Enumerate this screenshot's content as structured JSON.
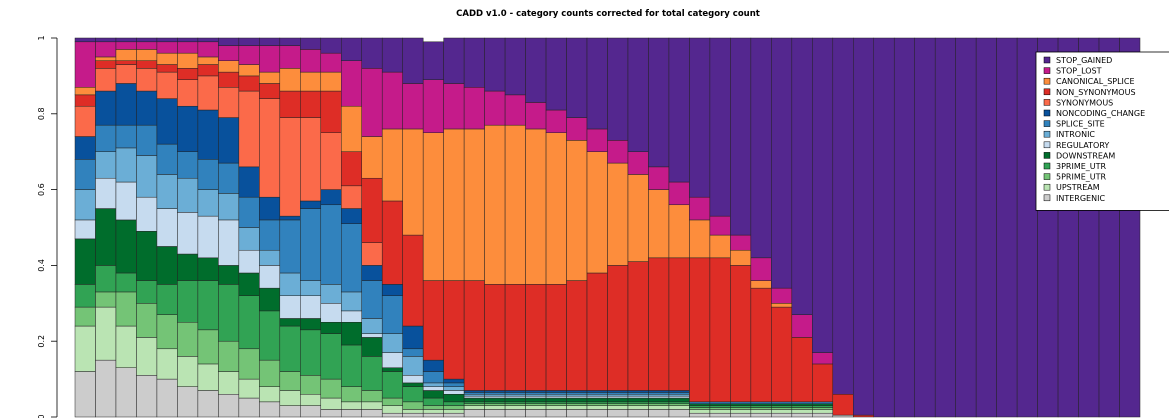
{
  "chart_data": {
    "type": "stacked_bar",
    "title": "CADD v1.0 - category counts corrected for total category count",
    "ylim": [
      0,
      1
    ],
    "yticks": [
      0,
      0.2,
      0.4,
      0.6,
      0.8,
      1
    ],
    "legend": "top-right",
    "series": [
      {
        "name": "STOP_GAINED",
        "color": "#54278f",
        "values": [
          0.01,
          0.01,
          0.01,
          0.01,
          0.01,
          0.01,
          0.01,
          0.02,
          0.02,
          0.02,
          0.02,
          0.03,
          0.04,
          0.06,
          0.08,
          0.09,
          0.12,
          0.1,
          0.12,
          0.13,
          0.14,
          0.15,
          0.17,
          0.19,
          0.21,
          0.24,
          0.27,
          0.3,
          0.34,
          0.38,
          0.42,
          0.47,
          0.52,
          0.58,
          0.66,
          0.73,
          0.83,
          0.94,
          0.995,
          1,
          1,
          1,
          1,
          1,
          1,
          1,
          1,
          1,
          1,
          1,
          1,
          1
        ]
      },
      {
        "name": "STOP_LOST",
        "color": "#c51b8a",
        "values": [
          0.12,
          0.04,
          0.02,
          0.02,
          0.03,
          0.03,
          0.04,
          0.04,
          0.05,
          0.07,
          0.06,
          0.06,
          0.05,
          0.12,
          0.18,
          0.15,
          0.12,
          0.14,
          0.12,
          0.11,
          0.09,
          0.08,
          0.07,
          0.06,
          0.06,
          0.06,
          0.06,
          0.06,
          0.06,
          0.06,
          0.06,
          0.05,
          0.04,
          0.06,
          0.04,
          0.06,
          0.03,
          0,
          0,
          0,
          0,
          0,
          0,
          0,
          0,
          0,
          0,
          0,
          0,
          0,
          0,
          0
        ]
      },
      {
        "name": "CANONICAL_SPLICE",
        "color": "#fd8d3c",
        "values": [
          0.02,
          0.01,
          0.03,
          0.03,
          0.03,
          0.04,
          0.02,
          0.03,
          0.03,
          0.03,
          0.06,
          0.05,
          0.05,
          0.12,
          0.11,
          0.19,
          0.28,
          0.39,
          0.4,
          0.4,
          0.42,
          0.42,
          0.41,
          0.4,
          0.37,
          0.32,
          0.27,
          0.23,
          0.18,
          0.14,
          0.1,
          0.06,
          0.04,
          0.02,
          0.01,
          0,
          0,
          0,
          0,
          0,
          0,
          0,
          0,
          0,
          0,
          0,
          0,
          0,
          0,
          0,
          0,
          0
        ]
      },
      {
        "name": "NON_SYNONYMOUS",
        "color": "#de2d26",
        "values": [
          0.03,
          0.02,
          0.01,
          0.02,
          0.02,
          0.03,
          0.03,
          0.04,
          0.04,
          0.04,
          0.07,
          0.07,
          0.11,
          0.09,
          0.17,
          0.22,
          0.24,
          0.21,
          0.26,
          0.29,
          0.28,
          0.28,
          0.28,
          0.28,
          0.29,
          0.31,
          0.33,
          0.34,
          0.35,
          0.35,
          0.38,
          0.38,
          0.36,
          0.3,
          0.25,
          0.17,
          0.1,
          0.055,
          0.005,
          0,
          0,
          0,
          0,
          0,
          0,
          0,
          0,
          0,
          0,
          0,
          0,
          0
        ]
      },
      {
        "name": "SYNONYMOUS",
        "color": "#fb6a4a",
        "values": [
          0.08,
          0.06,
          0.05,
          0.06,
          0.07,
          0.07,
          0.09,
          0.08,
          0.2,
          0.26,
          0.26,
          0.22,
          0.15,
          0.06,
          0.06,
          0,
          0,
          0,
          0,
          0,
          0,
          0,
          0,
          0,
          0,
          0,
          0,
          0,
          0,
          0,
          0,
          0,
          0,
          0,
          0,
          0,
          0,
          0,
          0,
          0,
          0,
          0,
          0,
          0,
          0,
          0,
          0,
          0,
          0,
          0,
          0,
          0
        ]
      },
      {
        "name": "NONCODING_CHANGE",
        "color": "#08519c",
        "values": [
          0.06,
          0.09,
          0.11,
          0.09,
          0.12,
          0.12,
          0.13,
          0.12,
          0.08,
          0.06,
          0.01,
          0.02,
          0.04,
          0.04,
          0.04,
          0.03,
          0.06,
          0.03,
          0.01,
          0.005,
          0.005,
          0.005,
          0.005,
          0.005,
          0.005,
          0.005,
          0.005,
          0.005,
          0.005,
          0.005,
          0,
          0,
          0,
          0,
          0,
          0,
          0,
          0,
          0,
          0,
          0,
          0,
          0,
          0,
          0,
          0,
          0,
          0,
          0,
          0,
          0,
          0
        ]
      },
      {
        "name": "SPLICE_SITE",
        "color": "#3182bd",
        "values": [
          0.08,
          0.07,
          0.06,
          0.08,
          0.08,
          0.07,
          0.08,
          0.08,
          0.08,
          0.08,
          0.14,
          0.19,
          0.21,
          0.18,
          0.1,
          0.1,
          0.02,
          0.03,
          0.01,
          0.005,
          0.005,
          0.005,
          0.005,
          0.005,
          0.005,
          0.005,
          0.005,
          0.005,
          0.005,
          0.005,
          0.005,
          0.005,
          0.005,
          0.005,
          0.005,
          0.005,
          0.005,
          0,
          0,
          0,
          0,
          0,
          0,
          0,
          0,
          0,
          0,
          0,
          0,
          0,
          0,
          0
        ]
      },
      {
        "name": "INTRONIC",
        "color": "#6baed6",
        "values": [
          0.08,
          0.07,
          0.09,
          0.11,
          0.09,
          0.09,
          0.07,
          0.07,
          0.06,
          0.04,
          0.06,
          0.04,
          0.05,
          0.05,
          0.04,
          0.05,
          0.05,
          0.01,
          0.01,
          0.005,
          0.005,
          0.005,
          0.005,
          0.005,
          0.005,
          0.005,
          0.005,
          0.005,
          0.005,
          0.005,
          0,
          0,
          0,
          0,
          0,
          0,
          0,
          0,
          0,
          0,
          0,
          0,
          0,
          0,
          0,
          0,
          0,
          0,
          0,
          0,
          0,
          0
        ]
      },
      {
        "name": "REGULATORY",
        "color": "#c6dbef",
        "values": [
          0.05,
          0.08,
          0.1,
          0.09,
          0.1,
          0.11,
          0.11,
          0.12,
          0.06,
          0.06,
          0.06,
          0.06,
          0.05,
          0.03,
          0.01,
          0.04,
          0.02,
          0.01,
          0.01,
          0.005,
          0.005,
          0.005,
          0.005,
          0.005,
          0.005,
          0.005,
          0.005,
          0.005,
          0.005,
          0.005,
          0,
          0,
          0,
          0,
          0,
          0,
          0,
          0,
          0,
          0,
          0,
          0,
          0,
          0,
          0,
          0,
          0,
          0,
          0,
          0,
          0,
          0
        ]
      },
      {
        "name": "DOWNSTREAM",
        "color": "#006d2c",
        "values": [
          0.12,
          0.15,
          0.14,
          0.13,
          0.1,
          0.07,
          0.06,
          0.05,
          0.06,
          0.06,
          0.02,
          0.03,
          0.03,
          0.06,
          0.05,
          0.01,
          0.01,
          0.02,
          0.02,
          0.01,
          0.01,
          0.01,
          0.01,
          0.01,
          0.01,
          0.01,
          0.01,
          0.01,
          0.01,
          0.01,
          0.005,
          0.005,
          0.005,
          0.005,
          0.005,
          0.005,
          0.005,
          0,
          0,
          0,
          0,
          0,
          0,
          0,
          0,
          0,
          0,
          0,
          0,
          0,
          0,
          0
        ]
      },
      {
        "name": "3PRIME_UTR",
        "color": "#31a354",
        "values": [
          0.06,
          0.07,
          0.05,
          0.06,
          0.08,
          0.11,
          0.13,
          0.15,
          0.14,
          0.13,
          0.12,
          0.12,
          0.12,
          0.11,
          0.09,
          0.07,
          0.04,
          0.02,
          0.01,
          0.005,
          0.005,
          0.005,
          0.005,
          0.005,
          0.005,
          0.005,
          0.005,
          0.005,
          0.005,
          0.005,
          0.005,
          0.005,
          0.005,
          0.005,
          0.005,
          0.005,
          0.005,
          0,
          0,
          0,
          0,
          0,
          0,
          0,
          0,
          0,
          0,
          0,
          0,
          0,
          0,
          0
        ]
      },
      {
        "name": "5PRIME_UTR",
        "color": "#74c476",
        "values": [
          0.05,
          0.04,
          0.09,
          0.09,
          0.09,
          0.09,
          0.09,
          0.08,
          0.08,
          0.07,
          0.05,
          0.05,
          0.05,
          0.04,
          0.03,
          0.02,
          0.02,
          0.01,
          0.01,
          0.005,
          0.005,
          0.005,
          0.005,
          0.005,
          0.005,
          0.005,
          0.005,
          0.005,
          0.005,
          0.005,
          0.005,
          0.005,
          0.005,
          0.005,
          0.005,
          0.005,
          0.005,
          0,
          0,
          0,
          0,
          0,
          0,
          0,
          0,
          0,
          0,
          0,
          0,
          0,
          0,
          0
        ]
      },
      {
        "name": "UPSTREAM",
        "color": "#bae4b3",
        "values": [
          0.12,
          0.14,
          0.11,
          0.1,
          0.08,
          0.08,
          0.07,
          0.06,
          0.05,
          0.04,
          0.04,
          0.03,
          0.03,
          0.02,
          0.02,
          0.02,
          0.01,
          0.01,
          0.01,
          0.01,
          0.01,
          0.01,
          0.01,
          0.01,
          0.01,
          0.01,
          0.01,
          0.01,
          0.01,
          0.01,
          0.01,
          0.01,
          0.01,
          0.01,
          0.01,
          0.01,
          0.01,
          0,
          0,
          0,
          0,
          0,
          0,
          0,
          0,
          0,
          0,
          0,
          0,
          0,
          0,
          0
        ]
      },
      {
        "name": "INTERGENIC",
        "color": "#cccccc",
        "values": [
          0.12,
          0.15,
          0.13,
          0.11,
          0.1,
          0.08,
          0.07,
          0.06,
          0.05,
          0.04,
          0.03,
          0.03,
          0.02,
          0.02,
          0.02,
          0.01,
          0.01,
          0.01,
          0.01,
          0.02,
          0.02,
          0.02,
          0.02,
          0.02,
          0.02,
          0.02,
          0.02,
          0.02,
          0.02,
          0.02,
          0.01,
          0.01,
          0.01,
          0.01,
          0.01,
          0.01,
          0.01,
          0.005,
          0,
          0,
          0,
          0,
          0,
          0,
          0,
          0,
          0,
          0,
          0,
          0,
          0,
          0
        ]
      }
    ]
  }
}
